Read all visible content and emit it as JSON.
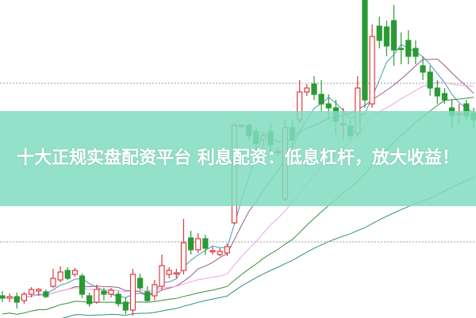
{
  "banner": {
    "title": "十大正规实盘配资平台 利息配资：低息杠杆，放大收益！"
  },
  "colors": {
    "up": "#e0393e",
    "down": "#2a9a35",
    "grid": "#999999",
    "banner": "#80dcbe",
    "ma": [
      "#3f9bb5",
      "#9b5a8c",
      "#e9a6e6",
      "#3c8c3c",
      "#2f8f84"
    ]
  },
  "chart_data": {
    "type": "candlestick",
    "title": "",
    "grid": true,
    "axes_labels_shown": false,
    "ma_windows": [
      5,
      10,
      20,
      30,
      60
    ],
    "candles_ochl": [
      [
        28,
        25,
        34,
        20
      ],
      [
        25,
        27,
        31,
        20
      ],
      [
        27,
        20,
        32,
        12
      ],
      [
        22,
        30,
        33,
        18
      ],
      [
        30,
        36,
        39,
        26
      ],
      [
        34,
        36,
        38,
        28
      ],
      [
        33,
        27,
        36,
        25
      ],
      [
        40,
        50,
        62,
        38
      ],
      [
        48,
        58,
        65,
        45
      ],
      [
        60,
        50,
        64,
        48
      ],
      [
        55,
        60,
        63,
        52
      ],
      [
        53,
        30,
        56,
        25
      ],
      [
        28,
        18,
        32,
        14
      ],
      [
        20,
        36,
        42,
        18
      ],
      [
        34,
        30,
        38,
        22
      ],
      [
        30,
        35,
        38,
        26
      ],
      [
        30,
        18,
        34,
        14
      ],
      [
        20,
        10,
        26,
        5
      ],
      [
        10,
        55,
        62,
        3
      ],
      [
        50,
        38,
        56,
        35
      ],
      [
        33,
        22,
        40,
        20
      ],
      [
        28,
        42,
        48,
        22
      ],
      [
        40,
        66,
        80,
        35
      ],
      [
        55,
        60,
        64,
        50
      ],
      [
        57,
        57,
        62,
        50
      ],
      [
        60,
        95,
        125,
        55
      ],
      [
        101,
        86,
        110,
        80
      ],
      [
        86,
        100,
        107,
        82
      ],
      [
        100,
        88,
        105,
        80
      ],
      [
        85,
        85,
        90,
        80
      ],
      [
        80,
        84,
        88,
        78
      ],
      [
        82,
        90,
        94,
        78
      ],
      [
        120,
        243,
        245,
        118
      ],
      [
        243,
        243,
        244,
        240
      ],
      [
        243,
        230,
        245,
        225
      ],
      [
        235,
        220,
        240,
        210
      ],
      [
        225,
        230,
        235,
        215
      ],
      [
        235,
        218,
        245,
        210
      ],
      [
        210,
        210,
        215,
        205
      ],
      [
        150,
        240,
        250,
        148
      ],
      [
        240,
        225,
        250,
        215
      ],
      [
        250,
        285,
        300,
        245
      ],
      [
        285,
        290,
        295,
        280
      ],
      [
        295,
        282,
        305,
        275
      ],
      [
        282,
        270,
        300,
        260
      ],
      [
        270,
        265,
        282,
        250
      ],
      [
        265,
        248,
        275,
        232
      ],
      [
        245,
        245,
        265,
        225
      ],
      [
        242,
        230,
        250,
        225
      ],
      [
        233,
        290,
        305,
        228
      ],
      [
        401,
        275,
        401,
        265
      ],
      [
        270,
        355,
        370,
        265
      ],
      [
        368,
        350,
        380,
        340
      ],
      [
        367,
        343,
        375,
        330
      ],
      [
        375,
        338,
        395,
        318
      ],
      [
        340,
        339,
        360,
        320
      ],
      [
        350,
        330,
        363,
        320
      ],
      [
        340,
        330,
        350,
        320
      ],
      [
        318,
        310,
        330,
        300
      ],
      [
        310,
        290,
        318,
        280
      ],
      [
        290,
        280,
        300,
        270
      ],
      [
        283,
        275,
        290,
        270
      ],
      [
        265,
        255,
        275,
        240
      ],
      [
        258,
        258,
        270,
        245
      ],
      [
        270,
        255,
        275,
        250
      ],
      [
        258,
        250,
        265,
        240
      ]
    ],
    "yrange": [
      0,
      401
    ]
  }
}
